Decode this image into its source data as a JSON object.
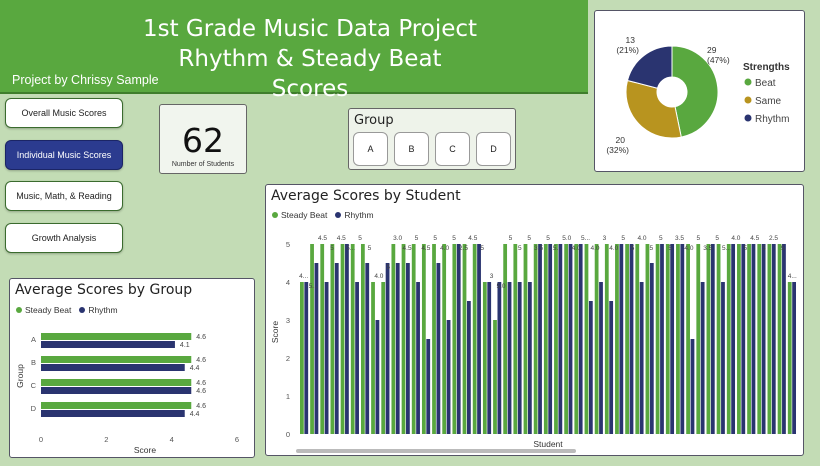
{
  "header": {
    "title_line1": "1st Grade Music Data Project",
    "title_line2": "Rhythm & Steady Beat Scores",
    "author": "Project by Chrissy Sample"
  },
  "nav": [
    {
      "label": "Overall Music Scores",
      "active": false
    },
    {
      "label": "Individual Music Scores",
      "active": true
    },
    {
      "label": "Music, Math, & Reading",
      "active": false
    },
    {
      "label": "Growth Analysis",
      "active": false
    }
  ],
  "kpi": {
    "value": "62",
    "label": "Number of Students"
  },
  "group_filter": {
    "title": "Group",
    "options": [
      "A",
      "B",
      "C",
      "D"
    ]
  },
  "colors": {
    "steady_beat": "#59a83f",
    "rhythm": "#2a3470",
    "same": "#b8941f",
    "header": "#59a83f",
    "background": "#c3dcb5"
  },
  "chart_data": [
    {
      "type": "pie",
      "title": "Strengths",
      "legend_position": "right",
      "slices": [
        {
          "name": "Beat",
          "value": 29,
          "label": "29\n(47%)",
          "color": "#59a83f"
        },
        {
          "name": "Same",
          "value": 20,
          "label": "20\n(32%)",
          "color": "#b8941f"
        },
        {
          "name": "Rhythm",
          "value": 13,
          "label": "13\n(21%)",
          "color": "#2a3470"
        }
      ]
    },
    {
      "type": "bar",
      "orientation": "horizontal",
      "title": "Average Scores by Group",
      "legend": [
        "Steady Beat",
        "Rhythm"
      ],
      "categories": [
        "A",
        "B",
        "C",
        "D"
      ],
      "series": [
        {
          "name": "Steady Beat",
          "values": [
            4.6,
            4.6,
            4.6,
            4.6
          ]
        },
        {
          "name": "Rhythm",
          "values": [
            4.1,
            4.4,
            4.6,
            4.4
          ]
        }
      ],
      "xlabel": "Score",
      "ylabel": "Group",
      "xlim": [
        0,
        6
      ],
      "xticks": [
        "0",
        "2",
        "4",
        "6"
      ]
    },
    {
      "type": "bar",
      "title": "Average Scores by Student",
      "legend": [
        "Steady Beat",
        "Rhythm"
      ],
      "xlabel": "Student",
      "ylabel": "Score",
      "ylim": [
        0,
        5
      ],
      "yticks": [
        "0",
        "1",
        "2",
        "3",
        "4",
        "5"
      ],
      "series": [
        {
          "name": "Steady Beat",
          "values": [
            4,
            5,
            5,
            5,
            5,
            5,
            5,
            4,
            4,
            5,
            5,
            5,
            5,
            5,
            5,
            5,
            5,
            5,
            4,
            3,
            5,
            5,
            5,
            5,
            5,
            5,
            5,
            5,
            5,
            5,
            5,
            5,
            5,
            5,
            5,
            5,
            5,
            5,
            5,
            5,
            5,
            5,
            5,
            5,
            5,
            5,
            5,
            5,
            4
          ]
        },
        {
          "name": "Rhythm",
          "values": [
            4,
            4.5,
            4,
            4.5,
            5,
            4,
            4.5,
            3,
            4.5,
            4.5,
            4.5,
            4,
            2.5,
            4.5,
            3,
            5,
            3.5,
            5,
            4,
            4,
            4,
            4,
            4,
            5,
            5,
            5,
            5,
            5,
            3.5,
            4,
            3.5,
            5,
            5,
            4,
            4.5,
            5,
            5,
            5,
            2.5,
            4,
            5,
            4,
            5,
            5,
            5,
            5,
            5,
            5,
            4
          ]
        }
      ],
      "labels_top": [
        "4...",
        "5...",
        "4.5",
        "5",
        "4.5",
        "5...",
        "5",
        "5",
        "4.0",
        "5",
        "3.0",
        "4.5",
        "5",
        "4.5",
        "5",
        "4.0",
        "5",
        "2.5",
        "4.5",
        "5",
        "3",
        "5.0",
        "5",
        "5",
        "5",
        "3.5",
        "5",
        "5...",
        "5.0",
        "4.0",
        "5...",
        "4.0",
        "3",
        "4.0",
        "5",
        "5",
        "4.0",
        "5",
        "5",
        "5",
        "3.5",
        "4.0",
        "5",
        "3.5",
        "5",
        "5...",
        "4.0",
        "5",
        "4.5",
        "5",
        "2.5",
        "5",
        "4..."
      ]
    }
  ]
}
